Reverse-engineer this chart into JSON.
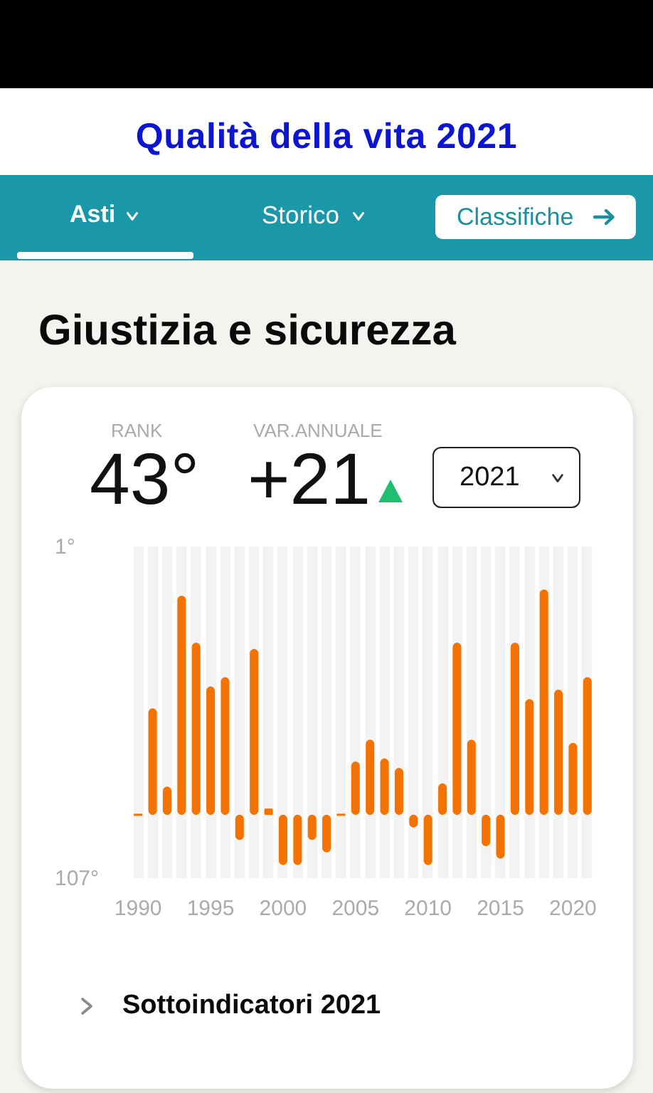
{
  "chart_data": {
    "type": "bar",
    "title": "Qualità della vita 2021",
    "subtitle": "Giustizia e sicurezza",
    "categories": [
      "1990",
      null,
      null,
      null,
      null,
      "1995",
      null,
      null,
      null,
      null,
      "2000",
      null,
      null,
      null,
      null,
      "2005",
      null,
      null,
      null,
      null,
      "2010",
      null,
      null,
      null,
      null,
      "2015",
      null,
      null,
      null,
      null,
      "2020",
      null
    ],
    "values": [
      0,
      -34,
      -9,
      -70,
      -55,
      -41,
      -44,
      8,
      -53,
      -2,
      16,
      16,
      8,
      12,
      0,
      -17,
      -24,
      -18,
      -15,
      4,
      16,
      -10,
      -55,
      -24,
      10,
      14,
      -55,
      -37,
      -72,
      -40,
      -23,
      -44
    ],
    "base": [
      87,
      87,
      87,
      87,
      87,
      87,
      87,
      87,
      87,
      87,
      87,
      87,
      87,
      87,
      87,
      87,
      87,
      87,
      87,
      87,
      87,
      87,
      87,
      87,
      87,
      87,
      87,
      87,
      87,
      87,
      87,
      87
    ],
    "color": "#f47300",
    "ylim": [
      107,
      1
    ],
    "yticks": [
      {
        "value": 1,
        "label": "1°"
      },
      {
        "value": 107,
        "label": "107°"
      }
    ],
    "grid": "x",
    "annotations": [
      "Asti",
      "Storico",
      "Classifiche",
      "RANK",
      "43°",
      "VAR.ANNUALE",
      "+21",
      "2021",
      "Sottoindicatori 2021"
    ]
  }
}
